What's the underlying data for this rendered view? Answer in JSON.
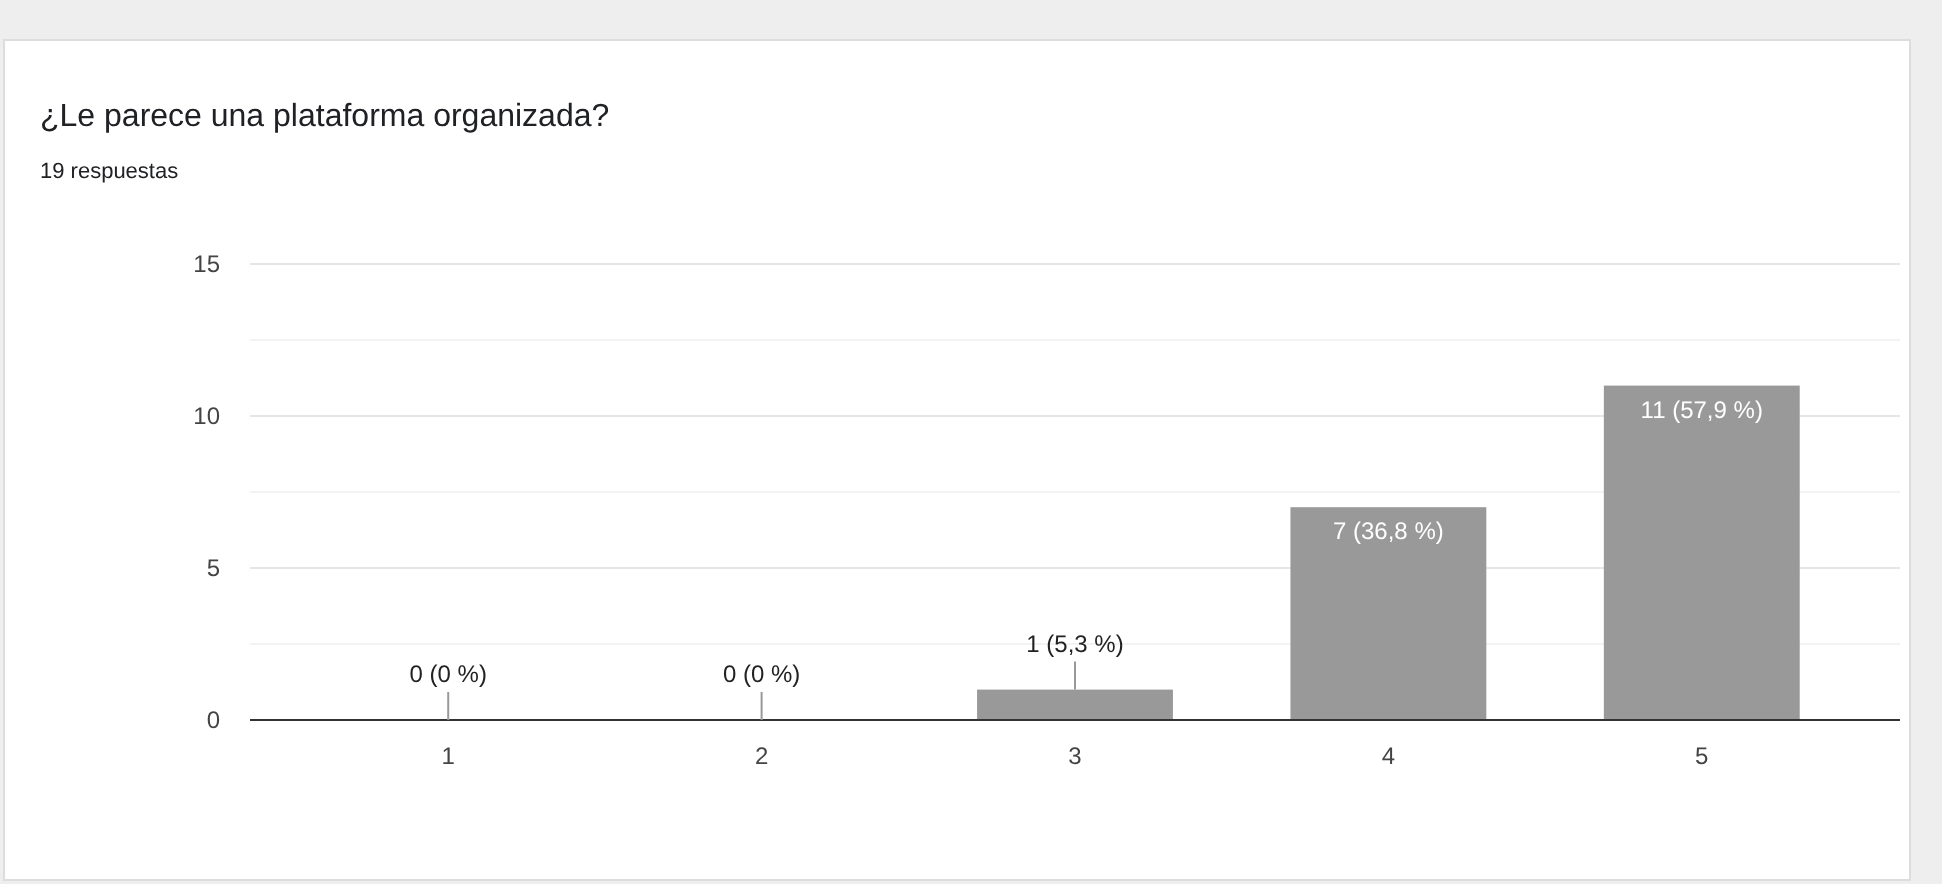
{
  "chart_data": {
    "type": "bar",
    "title": "¿Le parece una plataforma organizada?",
    "subtitle": "19 respuestas",
    "categories": [
      "1",
      "2",
      "3",
      "4",
      "5"
    ],
    "values": [
      0,
      0,
      1,
      7,
      11
    ],
    "color": "#999999",
    "value_labels": [
      "0 (0 %)",
      "0 (0 %)",
      "1 (5,3 %)",
      "7 (36,8 %)",
      "11 (57,9 %)"
    ],
    "ylim": [
      0,
      15
    ],
    "yticks": [
      0,
      {
        "value": 2.5,
        "label": null
      },
      5,
      {
        "value": 7.5,
        "label": null
      },
      10,
      {
        "value": 12.5,
        "label": null
      },
      15
    ],
    "grid": "y"
  }
}
